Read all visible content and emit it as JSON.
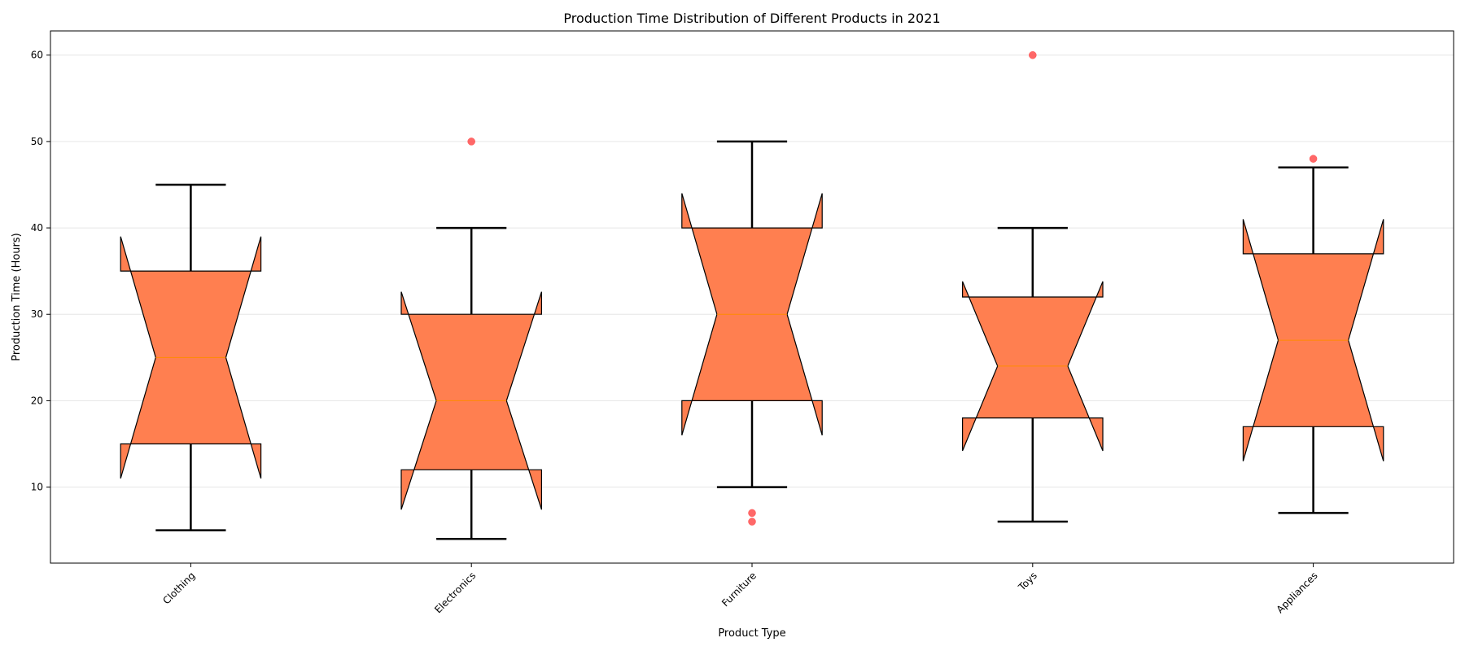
{
  "chart_data": {
    "type": "boxplot",
    "title": "Production Time Distribution of Different Products in 2021",
    "xlabel": "Product Type",
    "ylabel": "Production Time (Hours)",
    "ylim": [
      1.2,
      62.8
    ],
    "yticks": [
      10,
      20,
      30,
      40,
      50,
      60
    ],
    "grid": "horizontal",
    "notched": true,
    "colors": {
      "box_fill": "#FF7F50",
      "median": "#FF8C00",
      "outlier": "#FF4D4D",
      "whisker": "#000000",
      "grid": "#E6E6E6"
    },
    "categories": [
      "Clothing",
      "Electronics",
      "Furniture",
      "Toys",
      "Appliances"
    ],
    "boxes": [
      {
        "name": "Clothing",
        "whislo": 5,
        "q1": 15,
        "med": 25,
        "q3": 35,
        "whishi": 45,
        "notch": [
          11,
          39
        ],
        "outliers": []
      },
      {
        "name": "Electronics",
        "whislo": 4,
        "q1": 12,
        "med": 20,
        "q3": 30,
        "whishi": 40,
        "notch": [
          7.4,
          32.6
        ],
        "outliers": [
          50
        ]
      },
      {
        "name": "Furniture",
        "whislo": 10,
        "q1": 20,
        "med": 30,
        "q3": 40,
        "whishi": 50,
        "notch": [
          16,
          44
        ],
        "outliers": [
          7,
          6
        ]
      },
      {
        "name": "Toys",
        "whislo": 6,
        "q1": 18,
        "med": 24,
        "q3": 32,
        "whishi": 40,
        "notch": [
          14.2,
          33.8
        ],
        "outliers": [
          60
        ]
      },
      {
        "name": "Appliances",
        "whislo": 7,
        "q1": 17,
        "med": 27,
        "q3": 37,
        "whishi": 47,
        "notch": [
          13,
          41
        ],
        "outliers": [
          48
        ]
      }
    ]
  }
}
